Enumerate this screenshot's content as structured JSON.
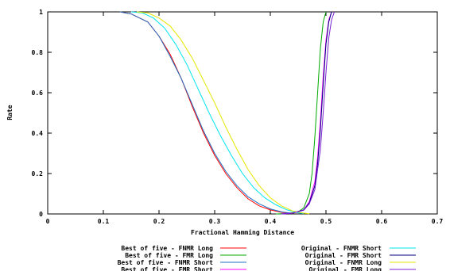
{
  "chart_data": {
    "type": "line",
    "xlabel": "Fractional Hamming Distance",
    "ylabel": "Rate",
    "xlim": [
      0,
      0.7
    ],
    "ylim": [
      0,
      1
    ],
    "x_ticks": [
      "0",
      "0.1",
      "0.2",
      "0.3",
      "0.4",
      "0.5",
      "0.6",
      "0.7"
    ],
    "y_ticks": [
      "0",
      "0.2",
      "0.4",
      "0.6",
      "0.8",
      "1"
    ],
    "grid": false,
    "legend_position": "bottom",
    "series": [
      {
        "name": "Best of five - FNMR Long",
        "color": "#ff0000",
        "x": [
          0.13,
          0.15,
          0.18,
          0.2,
          0.22,
          0.24,
          0.26,
          0.28,
          0.3,
          0.32,
          0.34,
          0.36,
          0.38,
          0.4,
          0.42,
          0.44
        ],
        "y": [
          1,
          0.99,
          0.95,
          0.88,
          0.79,
          0.67,
          0.53,
          0.4,
          0.29,
          0.2,
          0.13,
          0.075,
          0.04,
          0.02,
          0.008,
          0.002
        ]
      },
      {
        "name": "Best of five - FMR Long",
        "color": "#00aa00",
        "x": [
          0.41,
          0.43,
          0.45,
          0.46,
          0.47,
          0.475,
          0.48,
          0.485,
          0.49,
          0.495,
          0.5
        ],
        "y": [
          0,
          0.002,
          0.01,
          0.03,
          0.1,
          0.2,
          0.38,
          0.6,
          0.82,
          0.95,
          1
        ]
      },
      {
        "name": "Best of five - FNMR Short",
        "color": "#1f6fc4",
        "x": [
          0.13,
          0.15,
          0.18,
          0.2,
          0.22,
          0.24,
          0.26,
          0.28,
          0.3,
          0.32,
          0.34,
          0.36,
          0.38,
          0.4,
          0.42,
          0.44
        ],
        "y": [
          1,
          0.99,
          0.95,
          0.88,
          0.78,
          0.67,
          0.54,
          0.41,
          0.3,
          0.21,
          0.14,
          0.085,
          0.05,
          0.025,
          0.01,
          0.003
        ]
      },
      {
        "name": "Best of five - FMR Short",
        "color": "#ff00ff",
        "x": [
          0.42,
          0.44,
          0.46,
          0.47,
          0.48,
          0.485,
          0.49,
          0.495,
          0.5,
          0.505,
          0.51
        ],
        "y": [
          0,
          0.004,
          0.02,
          0.06,
          0.16,
          0.28,
          0.46,
          0.68,
          0.86,
          0.96,
          1
        ]
      },
      {
        "name": "Original - FNMR Short",
        "color": "#00e5ee",
        "x": [
          0.15,
          0.17,
          0.19,
          0.21,
          0.23,
          0.25,
          0.27,
          0.29,
          0.31,
          0.33,
          0.35,
          0.37,
          0.39,
          0.41,
          0.43,
          0.45,
          0.46
        ],
        "y": [
          1,
          0.995,
          0.97,
          0.92,
          0.84,
          0.74,
          0.62,
          0.5,
          0.39,
          0.29,
          0.2,
          0.13,
          0.08,
          0.045,
          0.02,
          0.006,
          0.002
        ]
      },
      {
        "name": "Original - FMR Short",
        "color": "#000080",
        "x": [
          0.42,
          0.44,
          0.46,
          0.47,
          0.48,
          0.485,
          0.49,
          0.495,
          0.5,
          0.505,
          0.51
        ],
        "y": [
          0,
          0.004,
          0.02,
          0.055,
          0.14,
          0.25,
          0.42,
          0.64,
          0.84,
          0.95,
          1
        ]
      },
      {
        "name": "Original - FNMR Long",
        "color": "#e6e600",
        "x": [
          0.16,
          0.18,
          0.2,
          0.22,
          0.24,
          0.26,
          0.28,
          0.3,
          0.32,
          0.34,
          0.36,
          0.38,
          0.4,
          0.42,
          0.44,
          0.46,
          0.47
        ],
        "y": [
          1,
          0.995,
          0.97,
          0.93,
          0.86,
          0.77,
          0.66,
          0.55,
          0.43,
          0.32,
          0.22,
          0.14,
          0.08,
          0.04,
          0.015,
          0.004,
          0.001
        ]
      },
      {
        "name": "Original - FMR Long",
        "color": "#7b1fd4",
        "x": [
          0.42,
          0.44,
          0.46,
          0.47,
          0.48,
          0.49,
          0.495,
          0.5,
          0.505,
          0.51,
          0.515
        ],
        "y": [
          0,
          0.004,
          0.018,
          0.05,
          0.12,
          0.32,
          0.5,
          0.7,
          0.87,
          0.96,
          1
        ]
      }
    ]
  }
}
